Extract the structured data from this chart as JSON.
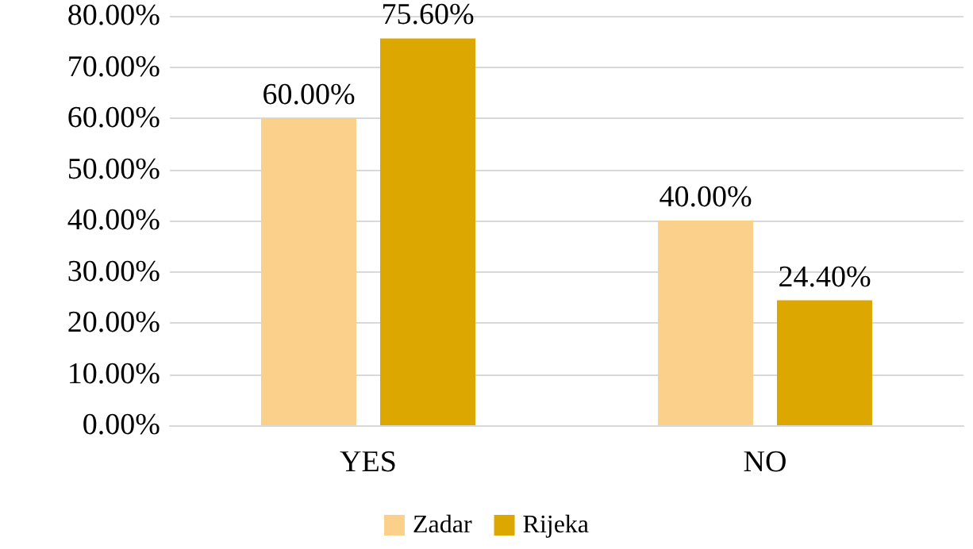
{
  "chart_data": {
    "type": "bar",
    "categories": [
      "YES",
      "NO"
    ],
    "series": [
      {
        "name": "Zadar",
        "color": "#fbd08b",
        "values": [
          60,
          40
        ],
        "value_labels": [
          "60.00%",
          "40.00%"
        ]
      },
      {
        "name": "Rijeka",
        "color": "#dca800",
        "values": [
          75.6,
          24.4
        ],
        "value_labels": [
          "75.60%",
          "24.40%"
        ]
      }
    ],
    "ylim": [
      0,
      80
    ],
    "yticks": [
      {
        "value": 0,
        "label": "0.00%"
      },
      {
        "value": 10,
        "label": "10.00%"
      },
      {
        "value": 20,
        "label": "20.00%"
      },
      {
        "value": 30,
        "label": "30.00%"
      },
      {
        "value": 40,
        "label": "40.00%"
      },
      {
        "value": 50,
        "label": "50.00%"
      },
      {
        "value": 60,
        "label": "60.00%"
      },
      {
        "value": 70,
        "label": "70.00%"
      },
      {
        "value": 80,
        "label": "80.00%"
      }
    ],
    "grid": "y",
    "legend": "bottom"
  }
}
